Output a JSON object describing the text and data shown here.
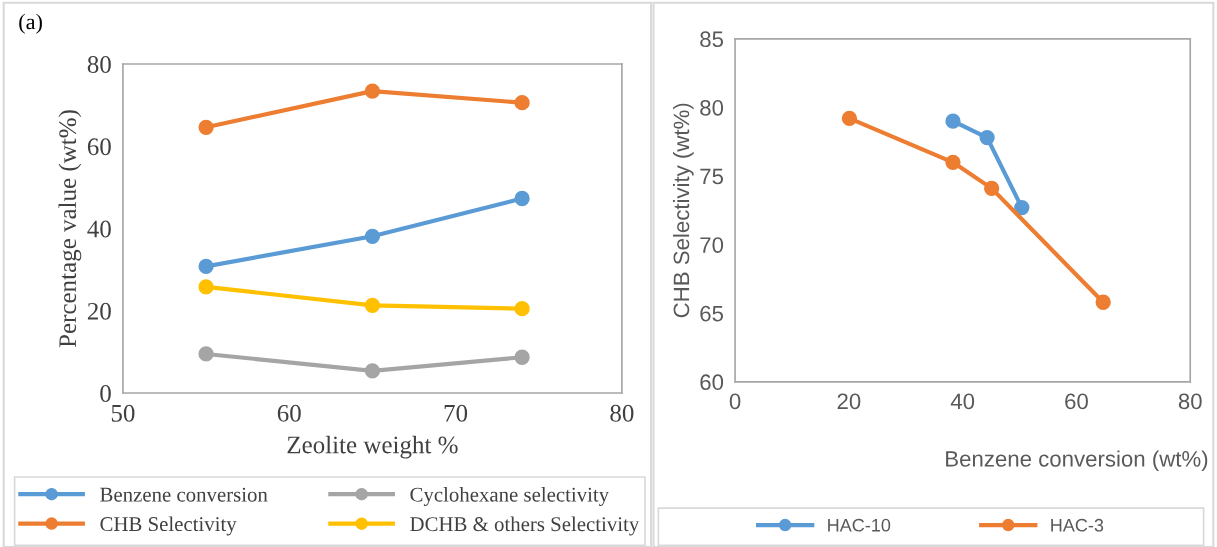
{
  "chart_data": [
    {
      "type": "line",
      "xlabel": "Zeolite weight %",
      "ylabel": "Percentage value (wt%)",
      "annotations": [
        "(a)"
      ],
      "x": [
        55,
        65,
        74
      ],
      "xlim": [
        50,
        80
      ],
      "xticks": [
        50,
        60,
        70,
        80
      ],
      "ylim": [
        0,
        80
      ],
      "yticks": [
        0,
        20,
        40,
        60,
        80
      ],
      "grid": false,
      "legend": "bottom",
      "marker": "circle",
      "series": [
        {
          "name": "Benzene conversion",
          "color": "#5b9bd5",
          "values": [
            30.8,
            38.1,
            47.3
          ]
        },
        {
          "name": "CHB Selectivity",
          "color": "#ed7d31",
          "values": [
            64.6,
            73.4,
            70.6
          ]
        },
        {
          "name": "Cyclohexane selectivity",
          "color": "#a5a5a5",
          "values": [
            9.5,
            5.4,
            8.7
          ]
        },
        {
          "name": "DCHB & others Selectivity",
          "color": "#ffc000",
          "values": [
            25.8,
            21.3,
            20.5
          ]
        }
      ]
    },
    {
      "type": "line",
      "xlabel": "Benzene conversion (wt%)",
      "ylabel": "CHB Selectivity (wt%)",
      "xlim": [
        0,
        80
      ],
      "xticks": [
        0,
        20,
        40,
        60,
        80
      ],
      "ylim": [
        60,
        85
      ],
      "yticks": [
        60,
        65,
        70,
        75,
        80,
        85
      ],
      "grid": false,
      "legend": "bottom",
      "marker": "circle",
      "series": [
        {
          "name": "HAC-10",
          "color": "#5b9bd5",
          "x": [
            38.3,
            44.3,
            50.4
          ],
          "values": [
            79.0,
            77.8,
            72.7
          ]
        },
        {
          "name": "HAC-3",
          "color": "#ed7d31",
          "x": [
            20.1,
            38.3,
            45.1,
            64.7
          ],
          "values": [
            79.2,
            76.0,
            74.1,
            65.8
          ]
        }
      ]
    }
  ]
}
